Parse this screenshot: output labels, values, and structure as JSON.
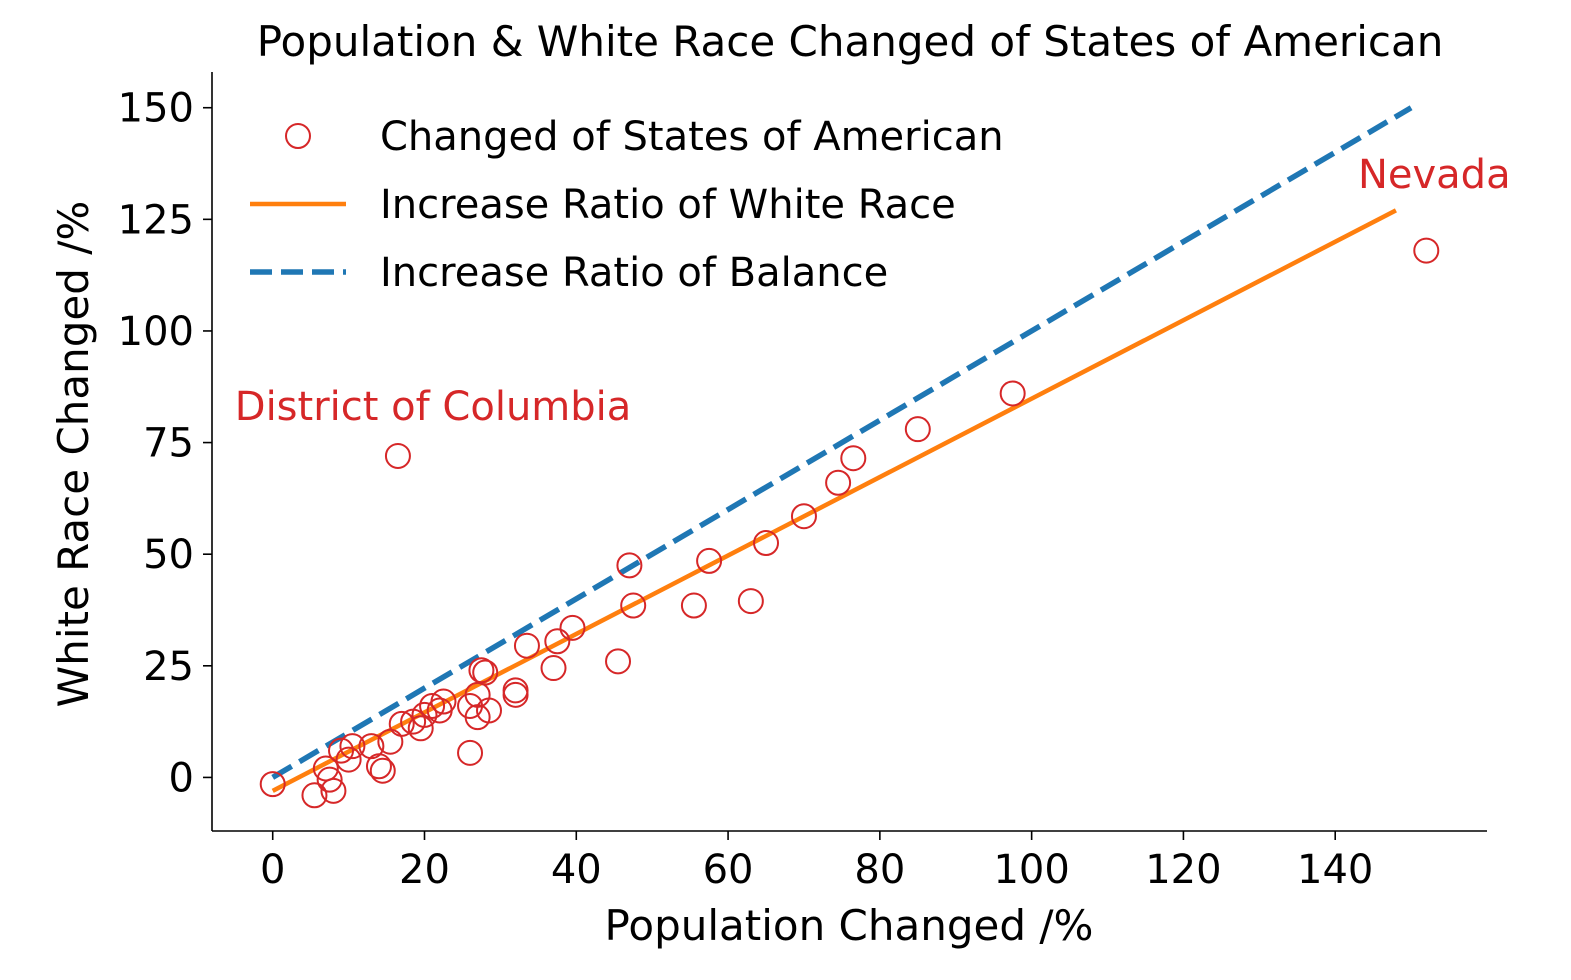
{
  "chart_data": {
    "type": "scatter",
    "title": "Population & White Race Changed of States of American",
    "xlabel": "Population Changed /%",
    "ylabel": "White Race Changed /%",
    "xlim": [
      -8,
      160
    ],
    "ylim": [
      -12,
      158
    ],
    "xticks": [
      0,
      20,
      40,
      60,
      80,
      100,
      120,
      140
    ],
    "yticks": [
      0,
      25,
      50,
      75,
      100,
      125,
      150
    ],
    "grid": false,
    "legend_position": "upper-left",
    "colors": {
      "scatter": "#d62728",
      "fit_line": "#ff7f0e",
      "balance_line": "#1f77b4"
    },
    "series": [
      {
        "name": "Changed of States of American",
        "kind": "scatter",
        "points": [
          [
            0,
            -1.5
          ],
          [
            5.5,
            -4
          ],
          [
            7,
            2
          ],
          [
            7.5,
            -0.5
          ],
          [
            8,
            -3
          ],
          [
            9,
            6
          ],
          [
            10,
            4
          ],
          [
            10.5,
            7
          ],
          [
            13,
            7
          ],
          [
            14,
            2.5
          ],
          [
            14.5,
            1.5
          ],
          [
            15.5,
            8
          ],
          [
            17,
            12
          ],
          [
            18.5,
            12.5
          ],
          [
            19.5,
            11
          ],
          [
            20,
            14
          ],
          [
            21,
            16
          ],
          [
            22,
            15
          ],
          [
            22.5,
            17
          ],
          [
            26,
            5.5
          ],
          [
            26,
            16
          ],
          [
            27,
            13.5
          ],
          [
            27,
            18.5
          ],
          [
            27.5,
            24
          ],
          [
            28,
            23.5
          ],
          [
            28.5,
            15
          ],
          [
            32,
            19.5
          ],
          [
            32,
            18.5
          ],
          [
            33.5,
            29.5
          ],
          [
            37,
            24.5
          ],
          [
            37.5,
            30.5
          ],
          [
            39.5,
            33.5
          ],
          [
            45.5,
            26
          ],
          [
            47,
            47.5
          ],
          [
            47.5,
            38.5
          ],
          [
            55.5,
            38.5
          ],
          [
            57.5,
            48.5
          ],
          [
            63,
            39.5
          ],
          [
            65,
            52.5
          ],
          [
            70,
            58.5
          ],
          [
            74.5,
            66
          ],
          [
            76.5,
            71.5
          ],
          [
            85,
            78
          ],
          [
            16.5,
            72
          ],
          [
            97.5,
            86
          ],
          [
            152,
            118
          ]
        ]
      },
      {
        "name": "Increase Ratio of White Race",
        "kind": "line",
        "points": [
          [
            0,
            -3
          ],
          [
            148,
            127
          ]
        ]
      },
      {
        "name": "Increase Ratio of Balance",
        "kind": "line",
        "points": [
          [
            0,
            0
          ],
          [
            150,
            150
          ]
        ]
      }
    ],
    "annotations": [
      {
        "text": "District of Columbia",
        "x": -5,
        "y": 80
      },
      {
        "text": "Nevada",
        "x": 143,
        "y": 132
      }
    ]
  }
}
